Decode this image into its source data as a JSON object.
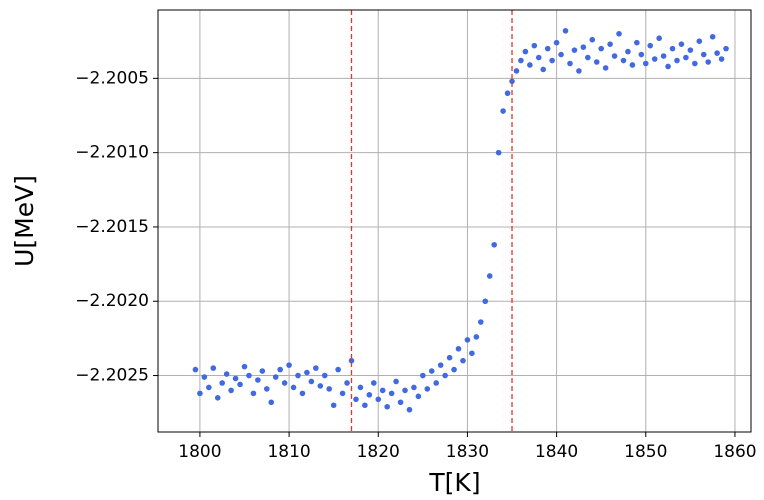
{
  "chart_data": {
    "type": "scatter",
    "x_label": "T[K]",
    "y_label": "U[MeV]",
    "color": "#4169e1",
    "vline_color": "#e8322c",
    "grid": true,
    "vlines": [
      1817,
      1835
    ],
    "xlim": [
      1795.3,
      1861.8
    ],
    "xticks": [
      1800,
      1810,
      1820,
      1830,
      1840,
      1850,
      1860
    ],
    "ylim": [
      -2.20288,
      -2.20004
    ],
    "yticks": [
      {
        "value": -2.2025,
        "label": "−2.2025"
      },
      {
        "value": -2.202,
        "label": "−2.2020"
      },
      {
        "value": -2.2015,
        "label": "−2.2015"
      },
      {
        "value": -2.201,
        "label": "−2.2010"
      },
      {
        "value": -2.2005,
        "label": "−2.2005"
      }
    ],
    "x": [
      1799.5,
      1800,
      1800.5,
      1801,
      1801.5,
      1802,
      1802.5,
      1803,
      1803.5,
      1804,
      1804.5,
      1805,
      1805.5,
      1806,
      1806.5,
      1807,
      1807.5,
      1808,
      1808.5,
      1809,
      1809.5,
      1810,
      1810.5,
      1811,
      1811.5,
      1812,
      1812.5,
      1813,
      1813.5,
      1814,
      1814.5,
      1815,
      1815.5,
      1816,
      1816.5,
      1817,
      1817.5,
      1818,
      1818.5,
      1819,
      1819.5,
      1820,
      1820.5,
      1821,
      1821.5,
      1822,
      1822.5,
      1823,
      1823.5,
      1824,
      1824.5,
      1825,
      1825.5,
      1826,
      1826.5,
      1827,
      1827.5,
      1828,
      1828.5,
      1829,
      1829.5,
      1830,
      1830.5,
      1831,
      1831.5,
      1832,
      1832.5,
      1833,
      1833.5,
      1834,
      1834.5,
      1835,
      1835.5,
      1836,
      1836.5,
      1837,
      1837.5,
      1838,
      1838.5,
      1839,
      1839.5,
      1840,
      1840.5,
      1841,
      1841.5,
      1842,
      1842.5,
      1843,
      1843.5,
      1844,
      1844.5,
      1845,
      1845.5,
      1846,
      1846.5,
      1847,
      1847.5,
      1848,
      1848.5,
      1849,
      1849.5,
      1850,
      1850.5,
      1851,
      1851.5,
      1852,
      1852.5,
      1853,
      1853.5,
      1854,
      1854.5,
      1855,
      1855.5,
      1856,
      1856.5,
      1857,
      1857.5,
      1858,
      1858.5,
      1859
    ],
    "values": [
      -2.20246,
      -2.20262,
      -2.20251,
      -2.20258,
      -2.20245,
      -2.20265,
      -2.20255,
      -2.20249,
      -2.2026,
      -2.20252,
      -2.20256,
      -2.20244,
      -2.2025,
      -2.20262,
      -2.20253,
      -2.20247,
      -2.20259,
      -2.20268,
      -2.20251,
      -2.20246,
      -2.20255,
      -2.20243,
      -2.20258,
      -2.2025,
      -2.20262,
      -2.20248,
      -2.20254,
      -2.20245,
      -2.20257,
      -2.2025,
      -2.20259,
      -2.2027,
      -2.20246,
      -2.20262,
      -2.20255,
      -2.2024,
      -2.20266,
      -2.20258,
      -2.2027,
      -2.20263,
      -2.20255,
      -2.20266,
      -2.2026,
      -2.20271,
      -2.20262,
      -2.20254,
      -2.20268,
      -2.2026,
      -2.20273,
      -2.20258,
      -2.20264,
      -2.2025,
      -2.20259,
      -2.20247,
      -2.20255,
      -2.20243,
      -2.2025,
      -2.20238,
      -2.20246,
      -2.20232,
      -2.2024,
      -2.20226,
      -2.20235,
      -2.20224,
      -2.20214,
      -2.202,
      -2.20183,
      -2.20162,
      -2.201,
      -2.20072,
      -2.2006,
      -2.20052,
      -2.20045,
      -2.20038,
      -2.20032,
      -2.20041,
      -2.20028,
      -2.20036,
      -2.20044,
      -2.2003,
      -2.20038,
      -2.20026,
      -2.20034,
      -2.20018,
      -2.2004,
      -2.20031,
      -2.20045,
      -2.20029,
      -2.20036,
      -2.20024,
      -2.20039,
      -2.2003,
      -2.20043,
      -2.20027,
      -2.20035,
      -2.2002,
      -2.20038,
      -2.20032,
      -2.20041,
      -2.20026,
      -2.20034,
      -2.2004,
      -2.20028,
      -2.20037,
      -2.20023,
      -2.20035,
      -2.20042,
      -2.2003,
      -2.20038,
      -2.20027,
      -2.20036,
      -2.20031,
      -2.2004,
      -2.20025,
      -2.20034,
      -2.20039,
      -2.20022,
      -2.20033,
      -2.20037,
      -2.2003
    ]
  }
}
